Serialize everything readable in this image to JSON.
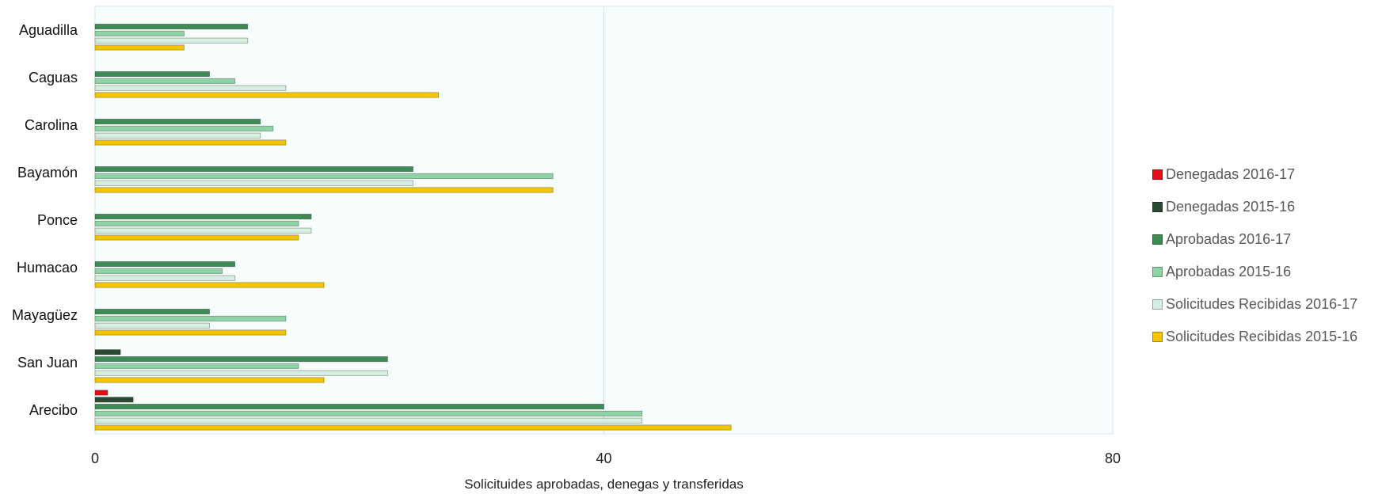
{
  "chart_data": {
    "type": "bar",
    "orientation": "horizontal",
    "categories": [
      "Aguadilla",
      "Caguas",
      "Carolina",
      "Bayamón",
      "Ponce",
      "Humacao",
      "Mayagüez",
      "San Juan",
      "Arecibo"
    ],
    "series": [
      {
        "name": "Solicitudes Recibidas 2015-16",
        "color": "#f2c500",
        "values": [
          7,
          27,
          15,
          36,
          16,
          18,
          15,
          18,
          50
        ]
      },
      {
        "name": "Solicitudes Recibidas 2016-17",
        "color": "#d5eedd",
        "values": [
          12,
          15,
          13,
          25,
          17,
          11,
          9,
          23,
          43
        ]
      },
      {
        "name": "Aprobadas 2015-16",
        "color": "#8fd3a4",
        "values": [
          7,
          11,
          14,
          36,
          16,
          10,
          15,
          16,
          43
        ]
      },
      {
        "name": "Aprobadas 2016-17",
        "color": "#3e8a55",
        "values": [
          12,
          9,
          13,
          25,
          17,
          11,
          9,
          23,
          40
        ]
      },
      {
        "name": "Denegadas 2015-16",
        "color": "#2b4a33",
        "values": [
          0,
          0,
          0,
          0,
          0,
          0,
          0,
          2,
          3
        ]
      },
      {
        "name": "Denegadas 2016-17",
        "color": "#e3101a",
        "values": [
          0,
          0,
          0,
          0,
          0,
          0,
          0,
          0,
          1
        ]
      }
    ],
    "xlabel": "Solicituides aprobadas, denegas y transferidas",
    "ylabel": "",
    "xlim": [
      0,
      80
    ],
    "xticks": [
      "0",
      "40",
      "80"
    ],
    "grid": true,
    "legend_position": "right"
  }
}
